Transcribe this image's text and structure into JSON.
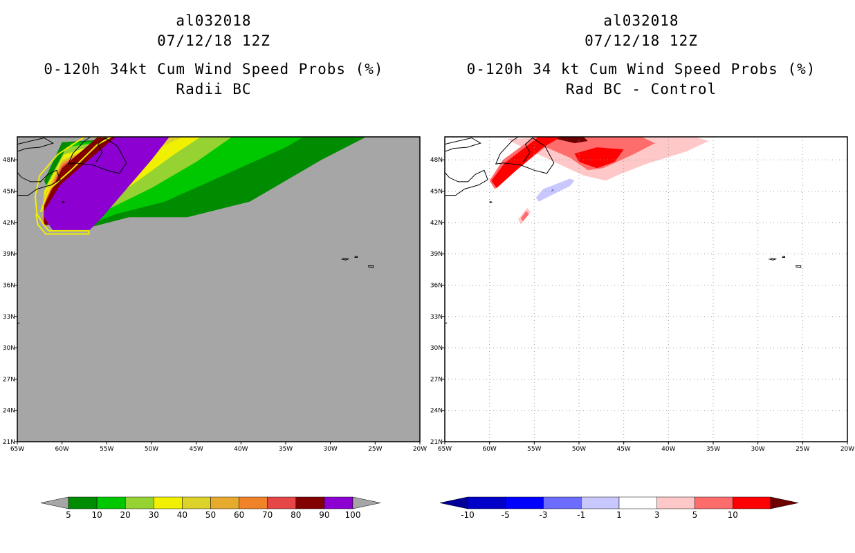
{
  "chart_data": [
    {
      "type": "heatmap",
      "storm_id": "al032018",
      "date": "07/12/18 12Z",
      "title": "0-120h 34kt Cum Wind Speed Probs (%)",
      "subtitle": "Radii BC",
      "xlabel": "",
      "ylabel": "",
      "xlim": [
        -65,
        -20
      ],
      "ylim": [
        21,
        50
      ],
      "x_ticks": [
        "65W",
        "60W",
        "55W",
        "50W",
        "45W",
        "40W",
        "35W",
        "30W",
        "25W",
        "20W"
      ],
      "y_ticks": [
        "21N",
        "24N",
        "27N",
        "30N",
        "33N",
        "36N",
        "39N",
        "42N",
        "45N",
        "48N"
      ],
      "grid": false,
      "background_color": "#a6a6a6",
      "colorbar": {
        "labels": [
          "5",
          "10",
          "20",
          "30",
          "40",
          "50",
          "60",
          "70",
          "80",
          "90",
          "100"
        ],
        "colors": [
          "#008c00",
          "#00c800",
          "#96d232",
          "#f0f000",
          "#dcd22a",
          "#e6aa2d",
          "#f08228",
          "#e64646",
          "#820000",
          "#8c00d2"
        ],
        "extend_below_color": "#a6a6a6",
        "extend_above_color": "#a6a6a6"
      },
      "contours": [
        {
          "level": 5,
          "color": "#008c00",
          "points": [
            [
              -57.5,
              41.4
            ],
            [
              -52.5,
              42.5
            ],
            [
              -46,
              42.5
            ],
            [
              -39,
              44
            ],
            [
              -31,
              48
            ],
            [
              -26,
              50.2
            ],
            [
              -40,
              50.2
            ],
            [
              -50,
              50.2
            ],
            [
              -60,
              49.7
            ],
            [
              -62,
              46
            ],
            [
              -61,
              44
            ]
          ]
        },
        {
          "level": 10,
          "color": "#00c800",
          "points": [
            [
              -57.5,
              41.6
            ],
            [
              -54,
              42.8
            ],
            [
              -48.5,
              44
            ],
            [
              -42,
              46.5
            ],
            [
              -35,
              49.2
            ],
            [
              -33,
              50.2
            ],
            [
              -48,
              50.2
            ],
            [
              -59,
              49.6
            ],
            [
              -61.5,
              46
            ],
            [
              -61,
              44
            ]
          ]
        },
        {
          "level": 20,
          "color": "#96d232",
          "points": [
            [
              -57.8,
              41.7
            ],
            [
              -55,
              43.2
            ],
            [
              -50,
              45.3
            ],
            [
              -45,
              47.8
            ],
            [
              -41,
              50.2
            ],
            [
              -52,
              50.2
            ],
            [
              -59.5,
              49.2
            ],
            [
              -61.8,
              45.5
            ],
            [
              -62,
              43.5
            ]
          ]
        },
        {
          "level": 30,
          "color": "#f0f000",
          "points": [
            [
              -58,
              41.8
            ],
            [
              -55.5,
              43.6
            ],
            [
              -51.5,
              46
            ],
            [
              -47.5,
              48.5
            ],
            [
              -44.5,
              50.2
            ],
            [
              -53.5,
              50.2
            ],
            [
              -59.8,
              48.5
            ],
            [
              -62,
              45
            ],
            [
              -62.2,
              43
            ]
          ]
        },
        {
          "level": 40,
          "color": "#dcd22a",
          "points": [
            [
              -58.2,
              41.9
            ],
            [
              -56,
              44
            ],
            [
              -52.5,
              46.6
            ],
            [
              -49,
              49.2
            ],
            [
              -46.5,
              50.2
            ],
            [
              -54,
              50.2
            ],
            [
              -60,
              48
            ],
            [
              -62,
              44.5
            ],
            [
              -62.2,
              42.5
            ]
          ]
        },
        {
          "level": 50,
          "color": "#e6aa2d",
          "points": [
            [
              -58.3,
              42
            ],
            [
              -56.3,
              44.3
            ],
            [
              -53,
              47
            ],
            [
              -50,
              49.6
            ],
            [
              -47.5,
              50.2
            ],
            [
              -54.5,
              50.2
            ],
            [
              -60,
              47.8
            ],
            [
              -62,
              44.2
            ],
            [
              -62.2,
              42.2
            ]
          ]
        },
        {
          "level": 60,
          "color": "#f08228",
          "points": [
            [
              -58.4,
              42.1
            ],
            [
              -56.6,
              44.6
            ],
            [
              -53.6,
              47.4
            ],
            [
              -50.8,
              49.8
            ],
            [
              -48.3,
              50.2
            ],
            [
              -55,
              50.2
            ],
            [
              -60,
              47.6
            ],
            [
              -62,
              44
            ],
            [
              -62.2,
              42
            ]
          ]
        },
        {
          "level": 70,
          "color": "#e64646",
          "points": [
            [
              -58.5,
              42.2
            ],
            [
              -56.8,
              44.8
            ],
            [
              -54,
              47.7
            ],
            [
              -51.3,
              50
            ],
            [
              -49,
              50.2
            ],
            [
              -55.5,
              50.2
            ],
            [
              -60,
              47.4
            ],
            [
              -62,
              43.8
            ],
            [
              -62.1,
              41.8
            ]
          ]
        },
        {
          "level": 80,
          "color": "#820000",
          "points": [
            [
              -58.6,
              42.3
            ],
            [
              -57,
              45
            ],
            [
              -54.4,
              48
            ],
            [
              -52,
              50.2
            ],
            [
              -49.6,
              50.2
            ],
            [
              -56,
              50.2
            ],
            [
              -60,
              47.2
            ],
            [
              -62,
              43.6
            ],
            [
              -62,
              41.7
            ]
          ]
        },
        {
          "level": 100,
          "color": "#8c00d2",
          "points": [
            [
              -62,
              43.1
            ],
            [
              -60.2,
              45.6
            ],
            [
              -57,
              48
            ],
            [
              -54,
              50.2
            ],
            [
              -48,
              50.2
            ],
            [
              -50,
              48
            ],
            [
              -53,
              45
            ],
            [
              -55.5,
              42.5
            ],
            [
              -57,
              41.2
            ],
            [
              -61,
              41.2
            ],
            [
              -62,
              42.5
            ]
          ]
        }
      ],
      "outline_points": [
        [
          -62.4,
          43
        ],
        [
          -61.8,
          44.4
        ],
        [
          -61.4,
          45.2
        ],
        [
          -59,
          47
        ],
        [
          -56,
          49.5
        ],
        [
          -54.5,
          50.2
        ],
        [
          -57.5,
          50.2
        ],
        [
          -60.5,
          48.5
        ],
        [
          -62.5,
          46.5
        ],
        [
          -63,
          44.5
        ],
        [
          -62.8,
          42.8
        ],
        [
          -62.2,
          42
        ],
        [
          -61.5,
          41.2
        ],
        [
          -61.5,
          41.2
        ],
        [
          -57.5,
          41.2
        ],
        [
          -57,
          41.2
        ],
        [
          -57,
          40.9
        ],
        [
          -61.8,
          40.9
        ],
        [
          -62.7,
          41.8
        ],
        [
          -62.9,
          42.8
        ]
      ]
    },
    {
      "type": "heatmap",
      "storm_id": "al032018",
      "date": "07/12/18 12Z",
      "title": "0-120h 34 kt Cum Wind Speed Probs (%)",
      "subtitle": "Rad BC - Control",
      "xlabel": "",
      "ylabel": "",
      "xlim": [
        -65,
        -20
      ],
      "ylim": [
        21,
        50
      ],
      "x_ticks": [
        "65W",
        "60W",
        "55W",
        "50W",
        "45W",
        "40W",
        "35W",
        "30W",
        "25W",
        "20W"
      ],
      "y_ticks": [
        "21N",
        "24N",
        "27N",
        "30N",
        "33N",
        "36N",
        "39N",
        "42N",
        "45N",
        "48N"
      ],
      "grid": true,
      "background_color": "#ffffff",
      "colorbar": {
        "labels": [
          "-10",
          "-5",
          "-3",
          "-1",
          "1",
          "3",
          "5",
          "10"
        ],
        "colors": [
          "#0000c8",
          "#0000ff",
          "#6c6cff",
          "#c8c8ff",
          "#ffffff",
          "#ffc8c8",
          "#ff6c6c",
          "#ff0000"
        ],
        "extend_below_color": "#000096",
        "extend_above_color": "#6e0000"
      },
      "contours": [
        {
          "level": 1,
          "color": "#ffc8c8",
          "points": [
            [
              -57,
              49.5
            ],
            [
              -52,
              47.5
            ],
            [
              -49.5,
              46.5
            ],
            [
              -47,
              46
            ],
            [
              -45.5,
              46.6
            ],
            [
              -42.5,
              47.6
            ],
            [
              -38,
              48.8
            ],
            [
              -35.5,
              49.8
            ],
            [
              -37,
              50.2
            ],
            [
              -52,
              50.2
            ],
            [
              -58,
              50
            ]
          ]
        },
        {
          "level": 1,
          "color": "#ffc8c8",
          "points": [
            [
              -59.2,
              45.3
            ],
            [
              -58.4,
              45.9
            ],
            [
              -58.8,
              46.2
            ],
            [
              -59.6,
              45.6
            ]
          ]
        },
        {
          "level": 1,
          "color": "#ffc8c8",
          "points": [
            [
              -56.5,
              41.8
            ],
            [
              -55.4,
              43
            ],
            [
              -55.8,
              43.4
            ],
            [
              -56.8,
              42.3
            ]
          ]
        },
        {
          "level": 3,
          "color": "#ff6c6c",
          "points": [
            [
              -55,
              49.7
            ],
            [
              -51,
              48.2
            ],
            [
              -49,
              47
            ],
            [
              -47.3,
              47.2
            ],
            [
              -44,
              48.5
            ],
            [
              -41.5,
              49.6
            ],
            [
              -43,
              50.2
            ],
            [
              -54,
              50.2
            ]
          ]
        },
        {
          "level": 3,
          "color": "#ff6c6c",
          "points": [
            [
              -59.4,
              45.2
            ],
            [
              -57,
              47
            ],
            [
              -53.5,
              49.4
            ],
            [
              -51.5,
              50.2
            ],
            [
              -55,
              50.2
            ],
            [
              -58.5,
              48
            ],
            [
              -60,
              46
            ]
          ]
        },
        {
          "level": 3,
          "color": "#ff6c6c",
          "points": [
            [
              -56.3,
              42.1
            ],
            [
              -55.6,
              42.8
            ],
            [
              -55.9,
              43.1
            ],
            [
              -56.5,
              42.4
            ]
          ]
        },
        {
          "level": 5,
          "color": "#ff0000",
          "points": [
            [
              -50,
              47.8
            ],
            [
              -48,
              47.2
            ],
            [
              -46,
              47.8
            ],
            [
              -45,
              49
            ],
            [
              -48,
              49.2
            ],
            [
              -50.5,
              48.6
            ]
          ]
        },
        {
          "level": 5,
          "color": "#ff0000",
          "points": [
            [
              -59.2,
              45.3
            ],
            [
              -57,
              47
            ],
            [
              -54,
              49.2
            ],
            [
              -52,
              50.2
            ],
            [
              -54.5,
              50.2
            ],
            [
              -58.3,
              47.7
            ],
            [
              -59.8,
              46
            ]
          ]
        },
        {
          "level": 10,
          "color": "#6e0000",
          "points": [
            [
              -52.5,
              50
            ],
            [
              -50.5,
              49.6
            ],
            [
              -49,
              49.8
            ],
            [
              -49.5,
              50.2
            ],
            [
              -52,
              50.2
            ]
          ]
        },
        {
          "level": -1,
          "color": "#c8c8ff",
          "points": [
            [
              -54.5,
              44
            ],
            [
              -51,
              45.5
            ],
            [
              -50.5,
              46
            ],
            [
              -51,
              46.2
            ],
            [
              -54,
              45.2
            ],
            [
              -54.8,
              44.4
            ]
          ]
        },
        {
          "level": -3,
          "color": "#6c6cff",
          "points": [
            [
              -53.1,
              44.9
            ],
            [
              -52.8,
              45.1
            ],
            [
              -53,
              45.2
            ]
          ]
        }
      ]
    }
  ]
}
